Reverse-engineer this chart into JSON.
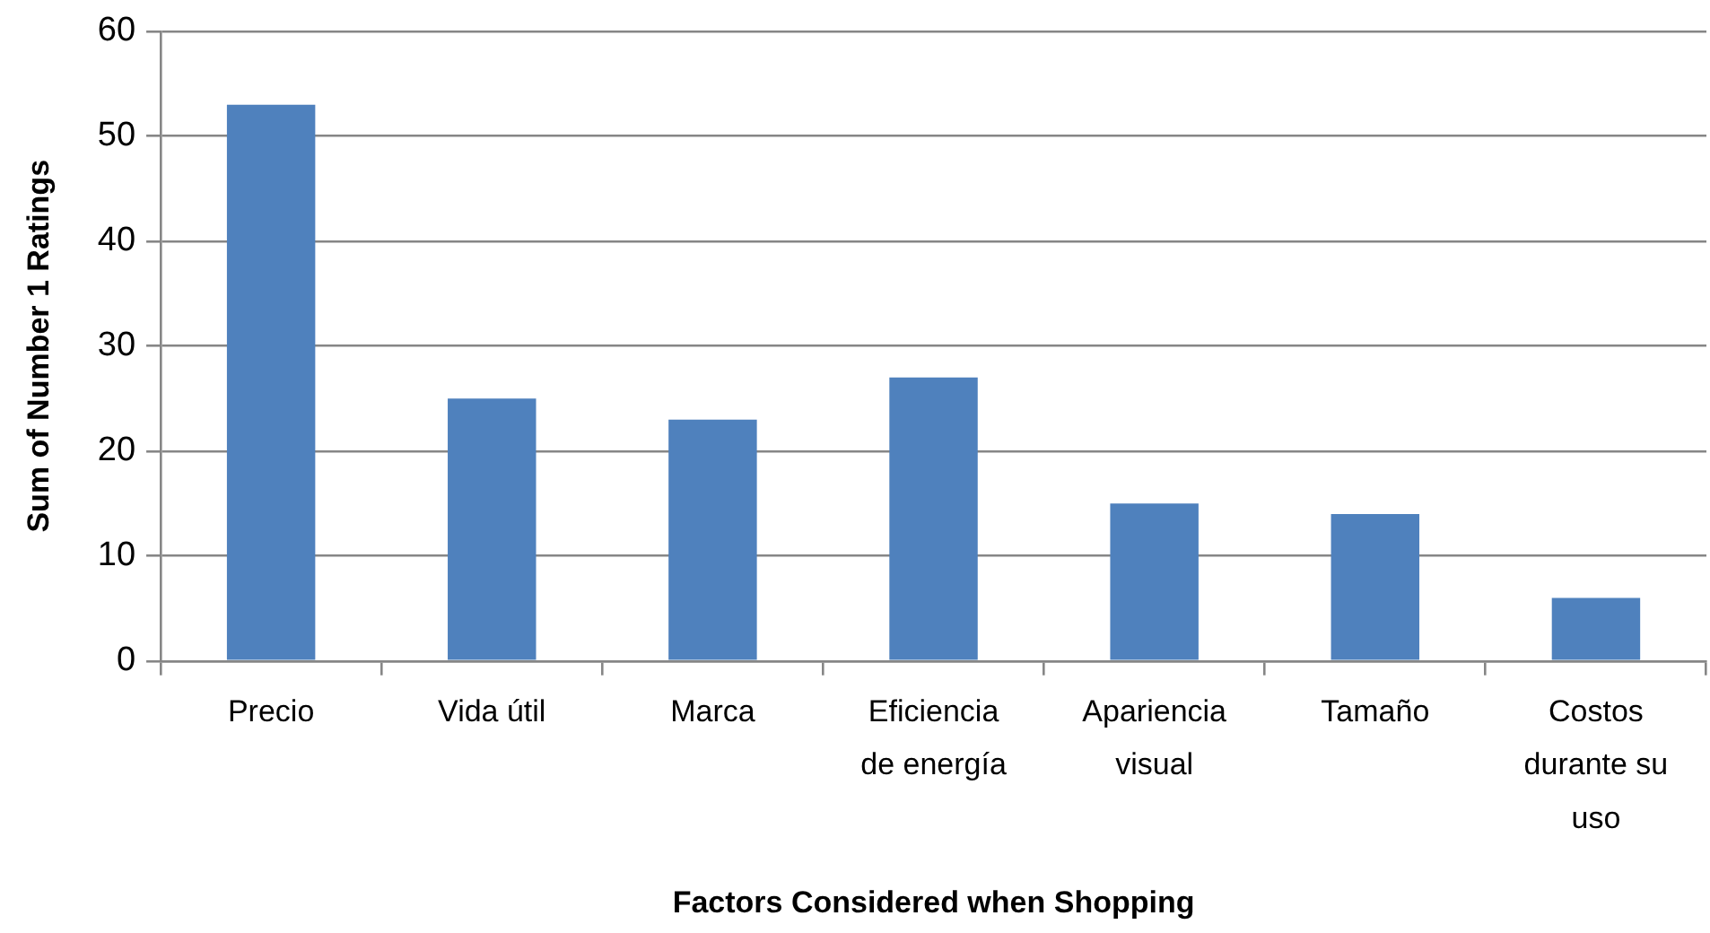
{
  "chart_data": {
    "type": "bar",
    "xlabel": "Factors Considered when Shopping",
    "ylabel": "Sum of Number 1 Ratings",
    "categories": [
      "Precio",
      "Vida útil",
      "Marca",
      "Eficiencia de energía",
      "Apariencia visual",
      "Tamaño",
      "Costos durante su uso"
    ],
    "values": [
      53,
      25,
      23,
      27,
      15,
      14,
      6
    ],
    "color": "#4f81bd",
    "ylim": [
      0,
      60
    ],
    "yticks": [
      0,
      10,
      20,
      30,
      40,
      50,
      60
    ],
    "grid": "y"
  }
}
